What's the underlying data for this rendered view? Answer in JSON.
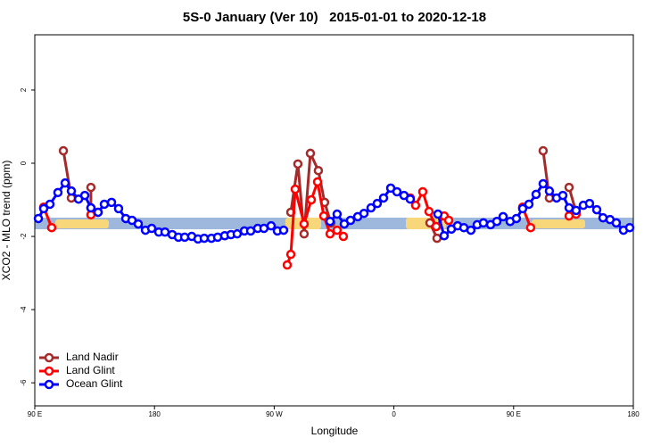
{
  "chart_data": {
    "type": "line",
    "title": "5S-0 January (Ver 10)   2015-01-01 to 2020-12-18",
    "x_label": "Longitude",
    "y_label": "XCO2 - MLO trend (ppm)",
    "xlim": [
      90,
      540
    ],
    "ylim": [
      -6.63,
      3.51
    ],
    "xticks": [
      {
        "value": 90,
        "label": "90 E"
      },
      180,
      {
        "value": 270,
        "label": "90 W"
      },
      {
        "value": 360,
        "label": "0"
      },
      {
        "value": 450,
        "label": "90 E"
      },
      {
        "value": 540,
        "label": "180"
      }
    ],
    "yticks": [
      -6,
      -4,
      -2,
      0,
      2
    ],
    "legend": "bottom-left",
    "series": [
      {
        "name": "Land Nadir",
        "color": "#a52a2a",
        "x": [
          111.5,
          117.5,
          null,
          132.2,
          132.2,
          null,
          282.5,
          287.8,
          292.5,
          297.2,
          303.2,
          307.9,
          312.6,
          null,
          387.1,
          392.4,
          null,
          472.2,
          476.9,
          null,
          491.7,
          497.0
        ],
        "values": [
          0.34,
          -0.95,
          null,
          -0.66,
          -1.22,
          null,
          -1.34,
          -0.02,
          -1.93,
          0.27,
          -0.2,
          -1.07,
          -1.63,
          null,
          -1.63,
          -2.05,
          null,
          0.34,
          -0.95,
          null,
          -0.66,
          -1.34
        ]
      },
      {
        "name": "Land Glint",
        "color": "#ff0000",
        "x": [
          96.7,
          102.7,
          null,
          132.2,
          137.6,
          null,
          279.8,
          282.5,
          285.8,
          292.5,
          297.9,
          302.6,
          307.3,
          312.0,
          317.3,
          322.0,
          null,
          372.3,
          376.3,
          381.7,
          386.4,
          391.8,
          397.8,
          401.2,
          null,
          456.8,
          462.8,
          null,
          491.7,
          497.0
        ],
        "values": [
          -1.2,
          -1.76,
          null,
          -1.41,
          -1.34,
          null,
          -2.78,
          -2.49,
          -0.71,
          -1.66,
          -1.0,
          -0.51,
          -1.44,
          -1.93,
          -1.83,
          -2.0,
          null,
          -0.95,
          -1.15,
          -0.78,
          -1.32,
          -1.73,
          -1.44,
          -1.56,
          null,
          -1.2,
          -1.76,
          null,
          -1.44,
          -1.39
        ]
      },
      {
        "name": "Ocean Glint",
        "color": "#0000ff",
        "x": [
          92.7,
          96.7,
          101.4,
          107.4,
          112.8,
          117.5,
          122.9,
          127.6,
          132.2,
          137.6,
          142.3,
          147.7,
          153.0,
          158.4,
          163.1,
          167.8,
          173.2,
          177.9,
          183.2,
          187.9,
          193.3,
          198.0,
          202.7,
          208.0,
          212.7,
          217.4,
          222.8,
          227.5,
          232.8,
          237.5,
          242.2,
          247.6,
          252.3,
          257.6,
          262.3,
          267.7,
          272.4,
          277.1,
          null,
          312.0,
          317.3,
          322.7,
          327.4,
          332.8,
          337.5,
          342.8,
          347.5,
          352.2,
          357.6,
          362.3,
          367.6,
          372.3,
          null,
          393.1,
          397.8,
          403.2,
          407.9,
          412.6,
          417.9,
          422.6,
          427.3,
          432.7,
          437.4,
          442.1,
          447.4,
          452.1,
          456.8,
          461.5,
          466.9,
          472.2,
          476.9,
          482.3,
          487.0,
          491.7,
          497.0,
          502.4,
          507.1,
          512.5,
          517.2,
          522.5,
          527.2,
          532.6,
          537.3
        ],
        "values": [
          -1.51,
          -1.24,
          -1.12,
          -0.8,
          -0.54,
          -0.76,
          -0.98,
          -0.88,
          -1.22,
          -1.34,
          -1.12,
          -1.07,
          -1.24,
          -1.51,
          -1.56,
          -1.66,
          -1.83,
          -1.78,
          -1.88,
          -1.88,
          -1.95,
          -2.02,
          -2.02,
          -2.0,
          -2.07,
          -2.05,
          -2.05,
          -2.02,
          -1.98,
          -1.95,
          -1.93,
          -1.85,
          -1.85,
          -1.78,
          -1.78,
          -1.71,
          -1.85,
          -1.83,
          null,
          -1.59,
          -1.39,
          -1.66,
          -1.56,
          -1.46,
          -1.37,
          -1.22,
          -1.1,
          -0.95,
          -0.68,
          -0.78,
          -0.88,
          -0.98,
          null,
          -1.39,
          -1.98,
          -1.8,
          -1.71,
          -1.76,
          -1.83,
          -1.68,
          -1.63,
          -1.68,
          -1.59,
          -1.46,
          -1.59,
          -1.51,
          -1.24,
          -1.12,
          -0.85,
          -0.56,
          -0.76,
          -0.95,
          -0.88,
          -1.22,
          -1.29,
          -1.15,
          -1.1,
          -1.27,
          -1.49,
          -1.54,
          -1.63,
          -1.83,
          -1.76
        ]
      }
    ]
  }
}
